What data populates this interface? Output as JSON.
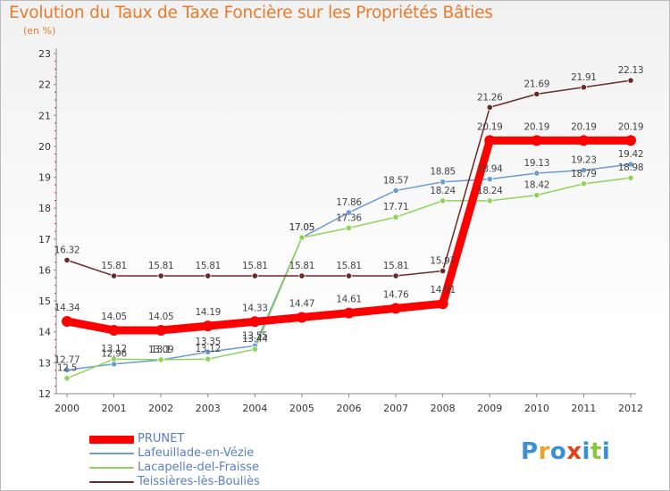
{
  "title": "Evolution du Taux de Taxe Foncière sur les Propriétés Bâties",
  "unit": "(en %)",
  "chart_data": {
    "type": "line",
    "title": "Evolution du Taux de Taxe Foncière sur les Propriétés Bâties",
    "ylabel": "(en %)",
    "xlabel": "",
    "categories": [
      "2000",
      "2001",
      "2002",
      "2003",
      "2004",
      "2005",
      "2006",
      "2007",
      "2008",
      "2009",
      "2010",
      "2011",
      "2012"
    ],
    "ylim": [
      12,
      23
    ],
    "yticks": [
      "12",
      "13",
      "14",
      "15",
      "16",
      "17",
      "18",
      "19",
      "20",
      "21",
      "22",
      "23"
    ],
    "grid": false,
    "legend": "bottom-left",
    "series": [
      {
        "name": "PRUNET",
        "color": "#ff0000",
        "values": [
          14.34,
          14.05,
          14.05,
          14.19,
          14.33,
          14.47,
          14.61,
          14.76,
          14.91,
          20.19,
          20.19,
          20.19,
          20.19
        ],
        "labels": [
          "14.34",
          "14.05",
          "14.05",
          "14.19",
          "14.33",
          "14.47",
          "14.61",
          "14.76",
          "14.91",
          "20.19",
          "20.19",
          "20.19",
          "20.19"
        ]
      },
      {
        "name": "Lafeuillade-en-Vézie",
        "color": "#6b9bd2",
        "values": [
          12.77,
          12.96,
          13.09,
          13.35,
          13.55,
          17.05,
          17.86,
          18.57,
          18.85,
          18.94,
          19.13,
          19.23,
          19.42
        ],
        "labels": [
          "12.77",
          "12.96",
          "13.09",
          "13.35",
          "13.55",
          "17.05",
          "17.86",
          "18.57",
          "18.85",
          "18.94",
          "19.13",
          "19.23",
          "19.42"
        ]
      },
      {
        "name": "Lacapelle-del-Fraisse",
        "color": "#8fd45a",
        "values": [
          12.5,
          13.12,
          13.1,
          13.12,
          13.44,
          17.05,
          17.36,
          17.71,
          18.24,
          18.24,
          18.42,
          18.79,
          18.98
        ],
        "labels": [
          "12.5",
          "13.12",
          "13.1",
          "13.12",
          "13.44",
          "17.05",
          "17.36",
          "17.71",
          "18.24",
          "18.24",
          "18.42",
          "18.79",
          "18.98"
        ]
      },
      {
        "name": "Teissières-lès-Bouliès",
        "color": "#6b2a2a",
        "values": [
          16.32,
          15.81,
          15.81,
          15.81,
          15.81,
          15.81,
          15.81,
          15.81,
          15.97,
          21.26,
          21.69,
          21.91,
          22.13
        ],
        "labels": [
          "16.32",
          "15.81",
          "15.81",
          "15.81",
          "15.81",
          "15.81",
          "15.81",
          "15.81",
          "15.97",
          "21.26",
          "21.69",
          "21.91",
          "22.13"
        ]
      }
    ]
  },
  "logo": {
    "text": "Proxiti",
    "colors": [
      "#3a8fd6",
      "#f2a02c",
      "#3a8fd6",
      "#e2401f",
      "#3a8fd6",
      "#8cc63f",
      "#3a8fd6"
    ]
  }
}
